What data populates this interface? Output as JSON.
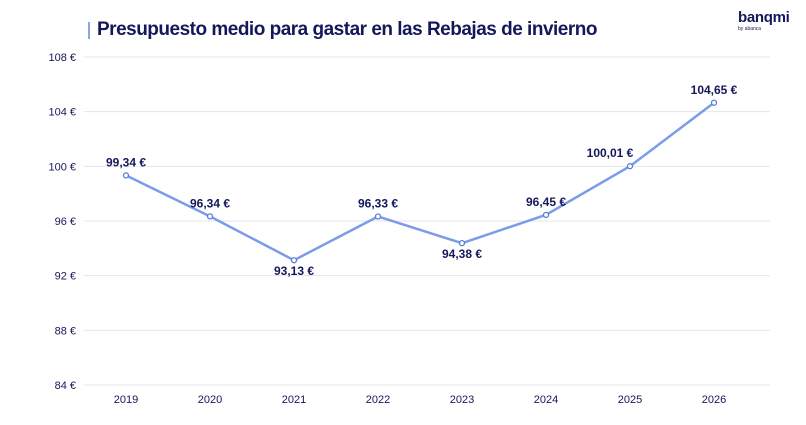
{
  "chart_data": {
    "type": "line",
    "title": "Presupuesto medio para gastar en las Rebajas de invierno",
    "categories": [
      "2019",
      "2020",
      "2021",
      "2022",
      "2023",
      "2024",
      "2025",
      "2026"
    ],
    "values": [
      99.34,
      96.34,
      93.13,
      96.33,
      94.38,
      96.45,
      100.01,
      104.65
    ],
    "data_labels": [
      "99,34 €",
      "96,34 €",
      "93,13 €",
      "96,33 €",
      "94,38 €",
      "96,45 €",
      "100,01 €",
      "104,65 €"
    ],
    "yticks": [
      84,
      88,
      92,
      96,
      100,
      104,
      108
    ],
    "ytick_labels": [
      "84 €",
      "88 €",
      "92 €",
      "96 €",
      "100 €",
      "104 €",
      "108 €"
    ],
    "ylim": [
      84,
      108
    ],
    "grid": true,
    "line_color": "#7b9ce8",
    "text_color": "#14185a"
  },
  "logo": {
    "name": "banqmi",
    "tagline": "by abanca"
  }
}
